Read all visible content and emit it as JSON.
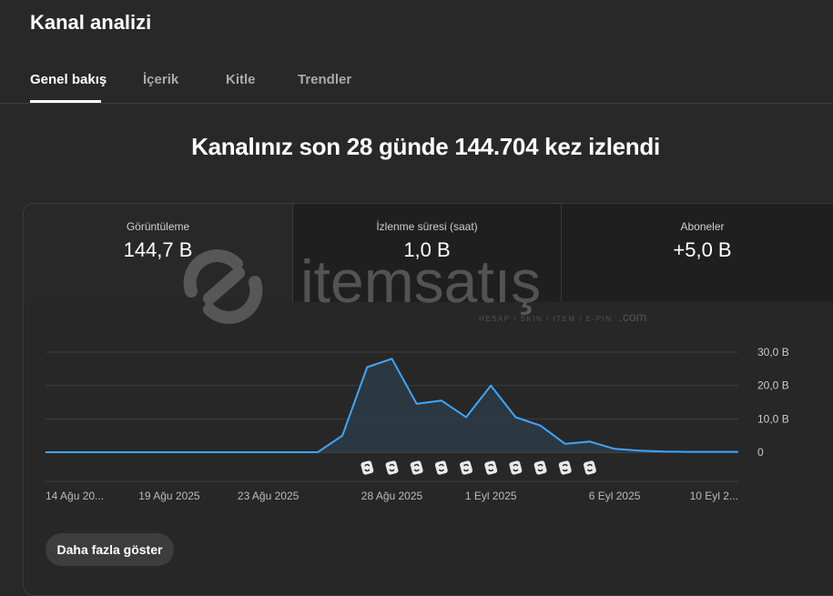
{
  "page_title": "Kanal analizi",
  "tabs": [
    {
      "label": "Genel bakış",
      "active": true
    },
    {
      "label": "İçerik",
      "active": false
    },
    {
      "label": "Kitle",
      "active": false
    },
    {
      "label": "Trendler",
      "active": false
    }
  ],
  "headline": "Kanalınız son 28 günde 144.704 kez izlendi",
  "metrics": [
    {
      "label": "Görüntüleme",
      "value": "144,7 B"
    },
    {
      "label": "İzlenme süresi (saat)",
      "value": "1,0 B"
    },
    {
      "label": "Aboneler",
      "value": "+5,0 B"
    }
  ],
  "watermark": {
    "brand": "itemsatış",
    "tagline": "HESAP / SKIN / ITEM / E-PIN",
    "suffix": ".com"
  },
  "chart_data": {
    "type": "area",
    "x": [
      "2025-08-14",
      "2025-08-15",
      "2025-08-16",
      "2025-08-17",
      "2025-08-18",
      "2025-08-19",
      "2025-08-20",
      "2025-08-21",
      "2025-08-22",
      "2025-08-23",
      "2025-08-24",
      "2025-08-25",
      "2025-08-26",
      "2025-08-27",
      "2025-08-28",
      "2025-08-29",
      "2025-08-30",
      "2025-08-31",
      "2025-09-01",
      "2025-09-02",
      "2025-09-03",
      "2025-09-04",
      "2025-09-05",
      "2025-09-06",
      "2025-09-07",
      "2025-09-08",
      "2025-09-09",
      "2025-09-10",
      "2025-09-11"
    ],
    "values": [
      0,
      0,
      0,
      0,
      0,
      0,
      0,
      0,
      0,
      0,
      0,
      0,
      5,
      25.5,
      28,
      14.5,
      15.5,
      10.5,
      20,
      10.5,
      8,
      2.5,
      3.2,
      1,
      0.5,
      0.2,
      0.1,
      0.1,
      0.1
    ],
    "x_tick_labels": [
      "14 Ağu 20...",
      "19 Ağu 2025",
      "23 Ağu 2025",
      "28 Ağu 2025",
      "1 Eyl 2025",
      "6 Eyl 2025",
      "10 Eyl 2..."
    ],
    "x_tick_days": [
      "2025-08-14",
      "2025-08-19",
      "2025-08-23",
      "2025-08-28",
      "2025-09-01",
      "2025-09-06",
      "2025-09-10"
    ],
    "y_ticks": [
      0,
      10,
      20,
      30
    ],
    "y_tick_labels": [
      "0",
      "10,0 B",
      "20,0 B",
      "30,0 B"
    ],
    "ylim": [
      0,
      30
    ],
    "marker_days": [
      "2025-08-27",
      "2025-08-28",
      "2025-08-29",
      "2025-08-30",
      "2025-08-31",
      "2025-09-01",
      "2025-09-02",
      "2025-09-03",
      "2025-09-04",
      "2025-09-05"
    ],
    "grid": true,
    "line_color": "#3ea6ff",
    "fill_color": "#2d3b45"
  },
  "show_more_label": "Daha fazla göster"
}
